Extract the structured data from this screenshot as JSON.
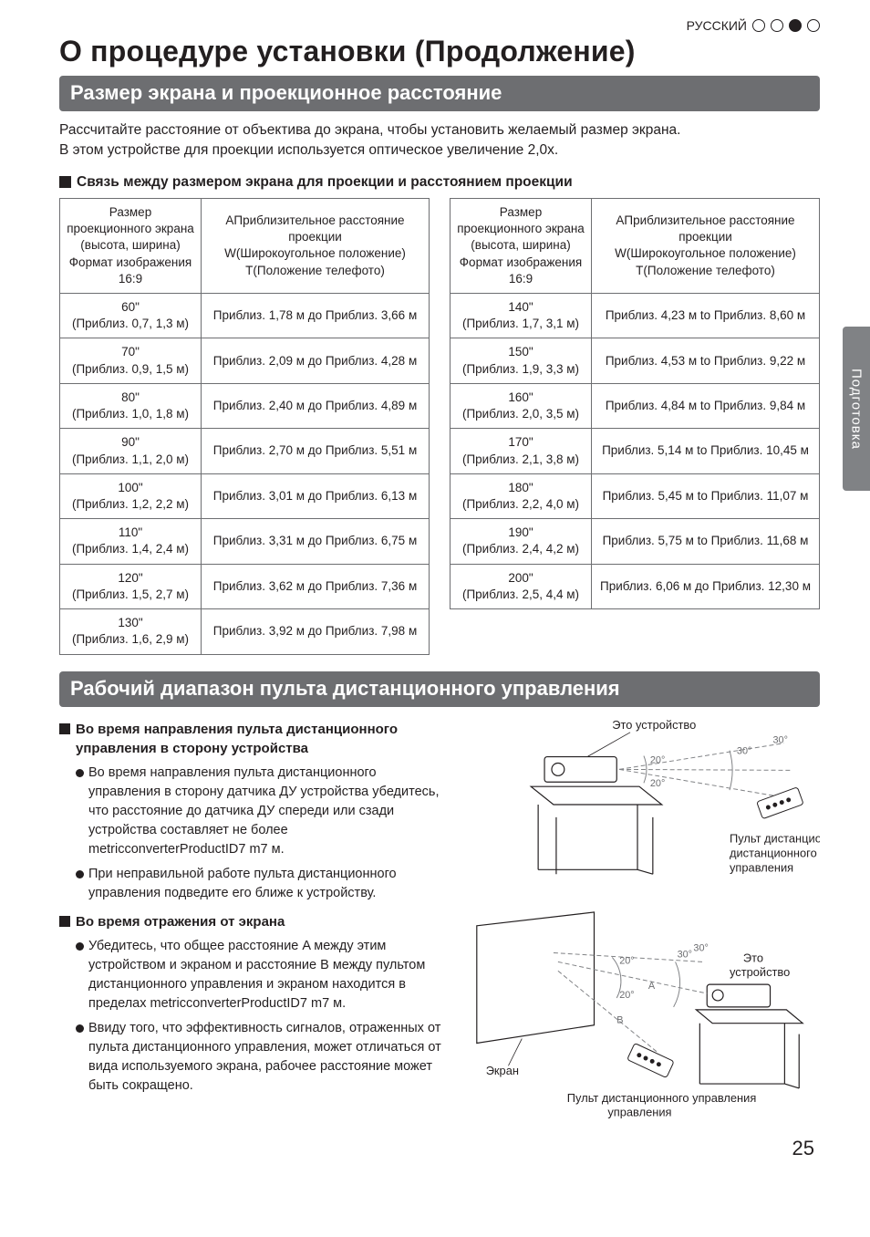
{
  "meta": {
    "page_number": "25"
  },
  "lang_bar": {
    "label": "РУССКИЙ",
    "dots_filled_index": 2,
    "dots_total": 4
  },
  "side_tab": "Подготовка",
  "title": "О процедуре установки (Продолжение)",
  "section1": {
    "bar": "Размер экрана и проекционное расстояние",
    "lead": "Рассчитайте расстояние от объектива до экрана, чтобы установить желаемый размер экрана.\nВ этом устройстве для проекции используется оптическое увеличение 2,0x.",
    "subheading": "Связь между размером экрана для проекции и расстоянием проекции",
    "tables": {
      "header_left": "Размер проекционного экрана\n(высота, ширина)\nФормат изображения 16:9",
      "header_right": "AПриблизительное расстояние проекции\nW(Широкоугольное положение)\nT(Положение телефото)",
      "left_rows": [
        {
          "screen": "60\"",
          "dims": "(Приблиз. 0,7, 1,3 м)",
          "dist": "Приблиз. 1,78 м до Приблиз. 3,66 м"
        },
        {
          "screen": "70\"",
          "dims": "(Приблиз. 0,9, 1,5 м)",
          "dist": "Приблиз. 2,09 м до Приблиз. 4,28 м"
        },
        {
          "screen": "80\"",
          "dims": "(Приблиз. 1,0, 1,8 м)",
          "dist": "Приблиз. 2,40 м до Приблиз. 4,89 м"
        },
        {
          "screen": "90\"",
          "dims": "(Приблиз. 1,1, 2,0 м)",
          "dist": "Приблиз. 2,70 м до Приблиз. 5,51 м"
        },
        {
          "screen": "100\"",
          "dims": "(Приблиз. 1,2, 2,2 м)",
          "dist": "Приблиз. 3,01 м до Приблиз. 6,13 м"
        },
        {
          "screen": "110\"",
          "dims": "(Приблиз. 1,4, 2,4 м)",
          "dist": "Приблиз. 3,31 м до Приблиз. 6,75 м"
        },
        {
          "screen": "120\"",
          "dims": "(Приблиз. 1,5, 2,7 м)",
          "dist": "Приблиз. 3,62 м до Приблиз. 7,36 м"
        },
        {
          "screen": "130\"",
          "dims": "(Приблиз. 1,6, 2,9 м)",
          "dist": "Приблиз. 3,92 м до Приблиз. 7,98 м"
        }
      ],
      "right_rows": [
        {
          "screen": "140\"",
          "dims": "(Приблиз. 1,7, 3,1 м)",
          "dist": "Приблиз. 4,23  м to  Приблиз. 8,60 м"
        },
        {
          "screen": "150\"",
          "dims": "(Приблиз. 1,9, 3,3 м)",
          "dist": "Приблиз. 4,53 м to  Приблиз. 9,22 м"
        },
        {
          "screen": "160\"",
          "dims": "(Приблиз. 2,0, 3,5 м)",
          "dist": "Приблиз. 4,84 м to  Приблиз. 9,84 м"
        },
        {
          "screen": "170\"",
          "dims": "(Приблиз. 2,1, 3,8 м)",
          "dist": "Приблиз. 5,14 м to  Приблиз. 10,45 м"
        },
        {
          "screen": "180\"",
          "dims": "(Приблиз. 2,2, 4,0 м)",
          "dist": "Приблиз. 5,45 м to  Приблиз. 11,07 м"
        },
        {
          "screen": "190\"",
          "dims": "(Приблиз. 2,4, 4,2 м)",
          "dist": "Приблиз. 5,75 м to  Приблиз. 11,68 м"
        },
        {
          "screen": "200\"",
          "dims": "(Приблиз. 2,5, 4,4 м)",
          "dist": "Приблиз. 6,06 м до Приблиз. 12,30 м"
        }
      ]
    }
  },
  "section2": {
    "bar": "Рабочий диапазон пульта дистанционного управления",
    "h1": "Во время направления пульта дистанционного управления в сторону устройства",
    "b1a": "Во время направления пульта дистанционного управления в сторону датчика ДУ устройства убедитесь, что расстояние до датчика ДУ спереди или сзади устройства составляет не более metricconverterProductID7 m7 м.",
    "b1b": "При неправильной работе пульта дистанционного управления подведите его ближе к устройству.",
    "h2": "Во время отражения от экрана",
    "b2a": "Убедитесь, что общее расстояние A между этим устройством и экраном и расстояние B между пультом дистанционного управления и экраном находится в пределах metricconverterProductID7 m7 м.",
    "b2b": "Ввиду того, что эффективность сигналов, отраженных от пульта дистанционного управления, может отличаться от вида используемого экрана, рабочее расстояние может быть сокращено.",
    "diagram": {
      "label_device": "Это устройство",
      "label_remote": "Пульт дистанционного управления",
      "label_screen": "Экран",
      "label_remote2": "Пульт дистанционного управления",
      "label_device2": "Это устройство",
      "angle30": "30°",
      "angle20": "20°",
      "seg_a": "A",
      "seg_b": "B"
    }
  },
  "colors": {
    "bar_bg": "#6d6e71",
    "bar_fg": "#ffffff",
    "text": "#231f20",
    "border": "#6d6e71",
    "side_tab_bg": "#808285"
  }
}
